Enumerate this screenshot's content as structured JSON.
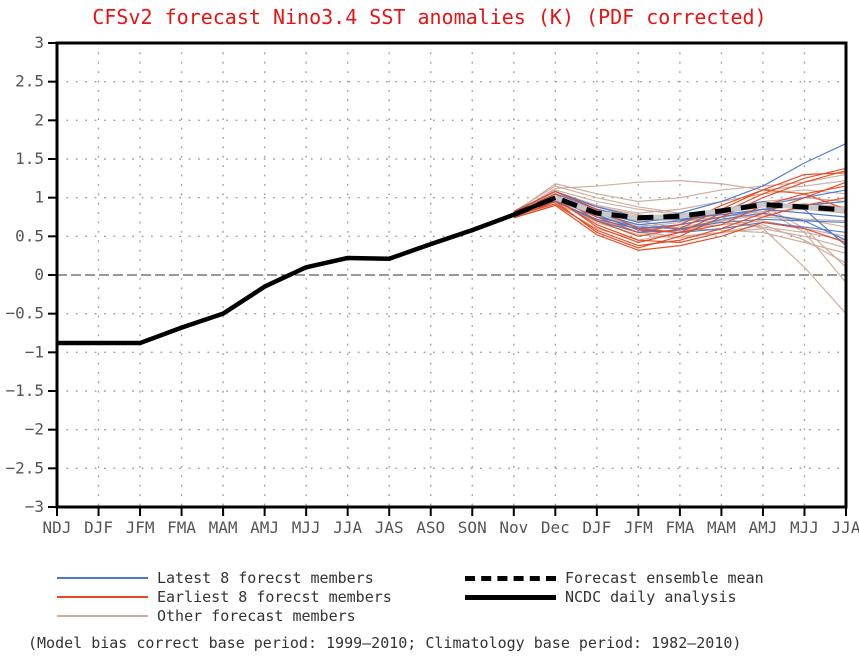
{
  "title": "CFSv2 forecast Nino3.4 SST anomalies (K) (PDF corrected)",
  "footnote": "(Model bias correct base period: 1999–2010; Climatology base period: 1982–2010)",
  "colors": {
    "title": "#e81414",
    "latest8": "#4a77cd",
    "earliest8": "#e8481f",
    "other": "#cbab9d",
    "mean": "#000000",
    "mean_underlay": "#c9c9c9",
    "obs": "#000000",
    "grid": "#a0a0a0",
    "axis_text": "#555555",
    "frame": "#000000"
  },
  "legend": {
    "left": [
      {
        "label": "Latest 8 forecst members",
        "color": "#4a77cd",
        "thickness": 2,
        "dash": false
      },
      {
        "label": "Earliest 8 forecst members",
        "color": "#e8481f",
        "thickness": 2,
        "dash": false
      },
      {
        "label": "Other forecast members",
        "color": "#cbab9d",
        "thickness": 2,
        "dash": false
      }
    ],
    "right": [
      {
        "label": "Forecast ensemble mean",
        "color": "#000000",
        "thickness": 5,
        "dash": true
      },
      {
        "label": "NCDC daily analysis",
        "color": "#000000",
        "thickness": 5,
        "dash": false
      }
    ]
  },
  "chart_data": {
    "type": "line",
    "title": "CFSv2 forecast Nino3.4 SST anomalies (K) (PDF corrected)",
    "xlabel": "",
    "ylabel": "",
    "ylim": [
      -3,
      3
    ],
    "ytick_step": 0.5,
    "grid": "dotted",
    "zero_line": true,
    "legend_position": "bottom",
    "categories": [
      "NDJ",
      "DJF",
      "JFM",
      "FMA",
      "MAM",
      "AMJ",
      "MJJ",
      "JJA",
      "JAS",
      "ASO",
      "SON",
      "Nov",
      "Dec",
      "DJF",
      "JFM",
      "FMA",
      "MAM",
      "AMJ",
      "MJJ",
      "JJA"
    ],
    "y_ticks": [
      {
        "v": 3,
        "label": "3"
      },
      {
        "v": 2.5,
        "label": "2.5"
      },
      {
        "v": 2,
        "label": "2"
      },
      {
        "v": 1.5,
        "label": "1.5"
      },
      {
        "v": 1,
        "label": "1"
      },
      {
        "v": 0.5,
        "label": "0.5"
      },
      {
        "v": 0,
        "label": "0"
      },
      {
        "v": -0.5,
        "label": "−0.5"
      },
      {
        "v": -1,
        "label": "−1"
      },
      {
        "v": -1.5,
        "label": "−1.5"
      },
      {
        "v": -2,
        "label": "−2"
      },
      {
        "v": -2.5,
        "label": "−2.5"
      },
      {
        "v": -3,
        "label": "−3"
      }
    ],
    "series": [
      {
        "name": "Other forecast members",
        "role": "members",
        "group": "other",
        "color": "#cbab9d",
        "width": 1.2,
        "start_index": 11,
        "members": [
          [
            0.8,
            1.18,
            1.05,
            0.95,
            1.0,
            1.1,
            1.15,
            1.2,
            1.3
          ],
          [
            0.78,
            1.12,
            1.15,
            1.2,
            1.22,
            1.18,
            1.1,
            1.15,
            1.22
          ],
          [
            0.76,
            1.05,
            0.9,
            0.8,
            0.85,
            0.95,
            1.05,
            1.1,
            1.05
          ],
          [
            0.8,
            1.1,
            0.95,
            0.85,
            0.78,
            0.85,
            0.95,
            1.0,
            0.95
          ],
          [
            0.75,
            0.95,
            0.78,
            0.7,
            0.72,
            0.8,
            0.88,
            0.92,
            0.88
          ],
          [
            0.78,
            1.0,
            0.85,
            0.75,
            0.7,
            0.75,
            0.82,
            0.85,
            0.8
          ],
          [
            0.82,
            1.15,
            1.0,
            0.88,
            0.8,
            0.78,
            0.75,
            0.72,
            0.7
          ],
          [
            0.74,
            0.92,
            0.7,
            0.6,
            0.62,
            0.7,
            0.78,
            0.72,
            0.62
          ],
          [
            0.77,
            0.98,
            0.75,
            0.65,
            0.6,
            0.65,
            0.7,
            0.6,
            0.5
          ],
          [
            0.79,
            1.05,
            0.88,
            0.78,
            0.72,
            0.68,
            0.62,
            0.55,
            0.45
          ],
          [
            0.75,
            0.95,
            0.72,
            0.55,
            0.5,
            0.55,
            0.6,
            0.5,
            0.35
          ],
          [
            0.8,
            1.08,
            0.9,
            0.7,
            0.6,
            0.58,
            0.55,
            0.42,
            0.28
          ],
          [
            0.76,
            0.95,
            0.68,
            0.52,
            0.48,
            0.55,
            0.65,
            0.45,
            0.15
          ],
          [
            0.78,
            1.02,
            0.8,
            0.62,
            0.68,
            0.8,
            0.9,
            0.6,
            0.1
          ],
          [
            0.74,
            0.9,
            0.6,
            0.45,
            0.55,
            0.7,
            0.85,
            0.55,
            -0.1
          ],
          [
            0.77,
            1.0,
            0.78,
            0.58,
            0.65,
            0.75,
            0.6,
            0.1,
            -0.5
          ]
        ]
      },
      {
        "name": "Latest 8 forecst members",
        "role": "members",
        "group": "latest8",
        "color": "#4a77cd",
        "width": 1.2,
        "start_index": 11,
        "members": [
          [
            0.8,
            1.05,
            0.85,
            0.72,
            0.8,
            0.95,
            1.15,
            1.45,
            1.7
          ],
          [
            0.78,
            1.0,
            0.8,
            0.65,
            0.7,
            0.8,
            0.9,
            1.0,
            1.1
          ],
          [
            0.75,
            0.95,
            0.72,
            0.6,
            0.65,
            0.75,
            0.85,
            0.9,
            0.95
          ],
          [
            0.82,
            1.08,
            0.88,
            0.75,
            0.72,
            0.78,
            0.85,
            0.8,
            0.75
          ],
          [
            0.77,
            0.98,
            0.75,
            0.62,
            0.6,
            0.68,
            0.72,
            0.7,
            0.68
          ],
          [
            0.8,
            1.02,
            0.78,
            0.58,
            0.55,
            0.6,
            0.68,
            0.62,
            0.55
          ],
          [
            0.76,
            0.96,
            0.7,
            0.55,
            0.58,
            0.72,
            0.8,
            0.7,
            0.45
          ],
          [
            0.79,
            1.0,
            0.82,
            0.68,
            0.75,
            0.85,
            0.95,
            0.85,
            0.38
          ]
        ]
      },
      {
        "name": "Earliest 8 forecst members",
        "role": "members",
        "group": "earliest8",
        "color": "#e8481f",
        "width": 1.2,
        "start_index": 11,
        "members": [
          [
            0.78,
            1.0,
            0.62,
            0.42,
            0.55,
            0.8,
            1.05,
            1.25,
            1.38
          ],
          [
            0.75,
            0.95,
            0.55,
            0.35,
            0.5,
            0.75,
            1.0,
            1.2,
            1.35
          ],
          [
            0.8,
            1.05,
            0.7,
            0.5,
            0.6,
            0.85,
            1.1,
            1.3,
            1.32
          ],
          [
            0.77,
            0.92,
            0.58,
            0.38,
            0.45,
            0.6,
            0.8,
            1.0,
            1.2
          ],
          [
            0.82,
            1.08,
            0.85,
            0.6,
            0.55,
            0.65,
            0.9,
            1.05,
            1.15
          ],
          [
            0.76,
            0.98,
            0.65,
            0.45,
            0.42,
            0.55,
            0.75,
            0.9,
            1.0
          ],
          [
            0.79,
            1.02,
            0.75,
            0.55,
            0.65,
            0.9,
            1.1,
            1.05,
            0.85
          ],
          [
            0.74,
            0.9,
            0.52,
            0.32,
            0.38,
            0.5,
            0.68,
            0.6,
            0.42
          ]
        ]
      },
      {
        "name": "Forecast ensemble mean",
        "role": "ensemble-mean",
        "color": "#000000",
        "style": "dashed",
        "width": 5,
        "start_index": 11,
        "values": [
          0.78,
          1.0,
          0.8,
          0.74,
          0.76,
          0.83,
          0.91,
          0.88,
          0.84
        ]
      },
      {
        "name": "NCDC daily analysis",
        "role": "observation",
        "color": "#000000",
        "style": "solid",
        "width": 4.5,
        "start_index": 0,
        "values": [
          -0.88,
          -0.88,
          -0.88,
          -0.68,
          -0.5,
          -0.15,
          0.1,
          0.22,
          0.21,
          0.4,
          0.58,
          0.78,
          1.0
        ]
      }
    ]
  }
}
